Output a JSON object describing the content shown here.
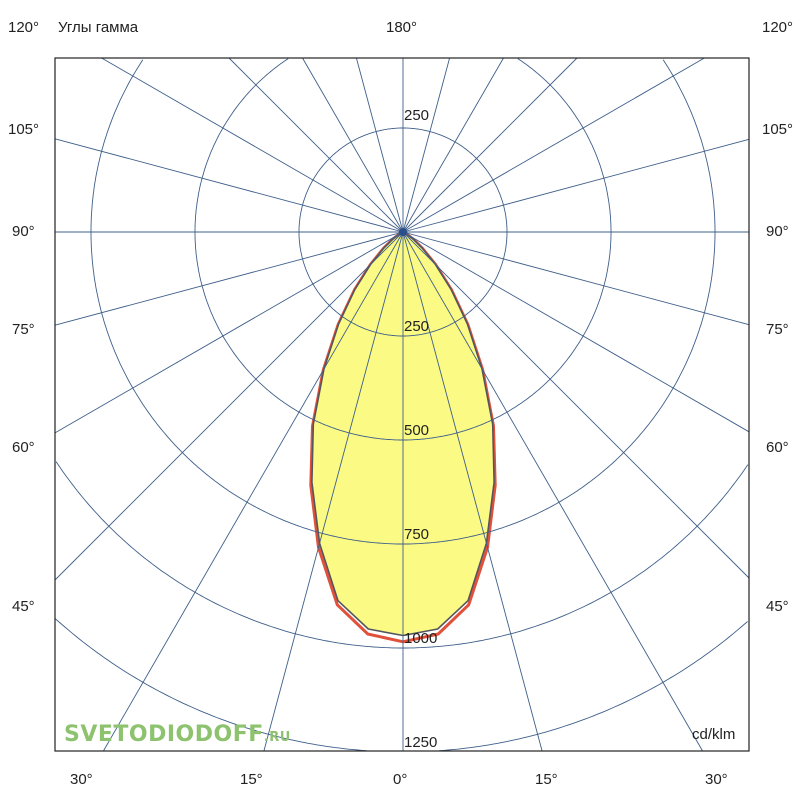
{
  "chart_data": {
    "type": "polar-line",
    "title": "Углы гамма",
    "unit_label": "cd/klm",
    "radial_ticks": [
      250,
      500,
      750,
      1000,
      1250
    ],
    "radial_top_label": "250",
    "angle_step": 15,
    "angle_labels": {
      "top": "180°",
      "left": [
        "120°",
        "105°",
        "90°",
        "75°",
        "60°",
        "45°"
      ],
      "right": [
        "120°",
        "105°",
        "90°",
        "75°",
        "60°",
        "45°"
      ],
      "bottom": [
        "30°",
        "15°",
        "0°",
        "15°",
        "30°"
      ]
    },
    "gamma": [
      0,
      5,
      10,
      15,
      20,
      25,
      30,
      35,
      40,
      45,
      50,
      55,
      60,
      65
    ],
    "series": [
      {
        "values": [
          985,
          970,
          910,
          785,
          648,
          515,
          383,
          272,
          181,
          111,
          61,
          30,
          10,
          0
        ],
        "color": "#e0503a"
      },
      {
        "values": [
          970,
          958,
          900,
          775,
          640,
          510,
          380,
          270,
          180,
          110,
          60,
          30,
          10,
          0
        ],
        "color": "#555560",
        "fill": "#fafa84"
      }
    ],
    "grid": true,
    "grid_color": "#3f5f8a"
  },
  "watermark": {
    "main": "SVETODIODOFF",
    "suffix": ".RU"
  }
}
